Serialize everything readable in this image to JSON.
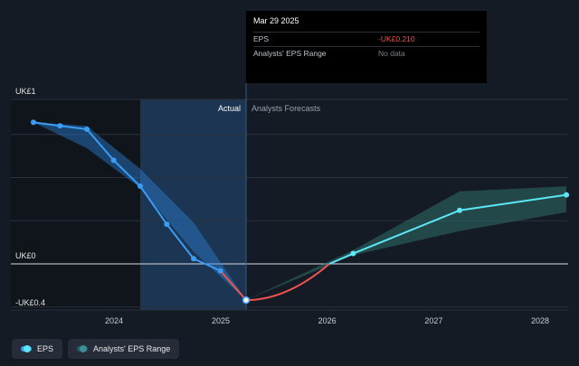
{
  "chart_data": {
    "type": "line",
    "y_label_top": "UK£1",
    "y_label_zero": "UK£0",
    "y_label_bottom": "-UK£0.4",
    "ylim": [
      -0.4,
      1.0
    ],
    "x_ticks": [
      2024,
      2025,
      2026,
      2027,
      2028
    ],
    "region_actual": "Actual",
    "region_forecast": "Analysts Forecasts",
    "series": [
      {
        "name": "EPS",
        "x": [
          "2023-03-31",
          "2023-06-30",
          "2023-09-30",
          "2023-12-31",
          "2024-03-31",
          "2024-06-30",
          "2024-09-30",
          "2024-12-31",
          "2025-03-29"
        ],
        "values": [
          0.82,
          0.8,
          0.78,
          0.6,
          0.45,
          0.23,
          0.03,
          -0.04,
          -0.21
        ]
      },
      {
        "name": "EPS forecast",
        "x": [
          "2025-03-29",
          "2026-03-31",
          "2027-03-31",
          "2028-03-31"
        ],
        "values": [
          -0.21,
          0.06,
          0.31,
          0.4
        ]
      }
    ],
    "range_band": {
      "name": "Analysts' EPS Range",
      "x": [
        "2023-03-31",
        "2023-09-30",
        "2024-03-31",
        "2024-09-30",
        "2025-03-29",
        "2026-03-31",
        "2027-03-31",
        "2028-03-31"
      ],
      "low": [
        0.82,
        0.67,
        0.44,
        0.07,
        -0.21,
        0.05,
        0.19,
        0.3
      ],
      "high": [
        0.82,
        0.8,
        0.55,
        0.24,
        -0.21,
        0.08,
        0.42,
        0.45
      ]
    },
    "colors": {
      "eps": "#3a9df5",
      "eps_negative": "#f0544f",
      "forecast": "#5de6f5",
      "forecast_band": "#2d6e6a",
      "actual_band": "#2a7fd4",
      "highlight": "#1d3a5a"
    },
    "grid": true,
    "legend_position": "bottom-left"
  },
  "tooltip": {
    "date": "Mar 29 2025",
    "eps_label": "EPS",
    "eps_value": "-UK£0.210",
    "range_label": "Analysts' EPS Range",
    "range_value": "No data"
  },
  "legend": {
    "eps": "EPS",
    "range": "Analysts' EPS Range"
  }
}
